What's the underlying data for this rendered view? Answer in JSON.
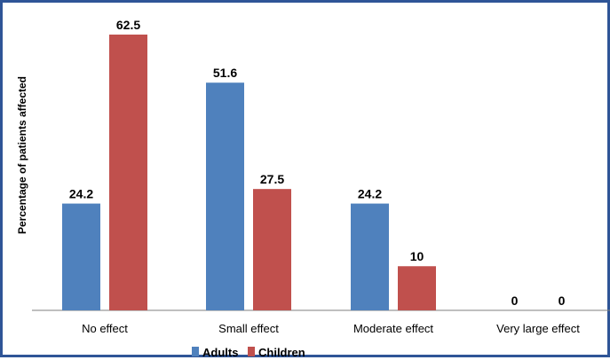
{
  "chart_data": {
    "type": "bar",
    "categories": [
      "No effect",
      "Small effect",
      "Moderate effect",
      "Very large effect"
    ],
    "series": [
      {
        "name": "Adults",
        "values": [
          24.2,
          51.6,
          24.2,
          0
        ],
        "color": "#4f81bd"
      },
      {
        "name": "Children",
        "values": [
          62.5,
          27.5,
          10,
          0
        ],
        "color": "#c0504d"
      }
    ],
    "value_labels": [
      [
        "24.2",
        "51.6",
        "24.2",
        "0"
      ],
      [
        "62.5",
        "27.5",
        "10",
        "0"
      ]
    ],
    "title": "",
    "xlabel": "",
    "ylabel": "Percentage of patients affected",
    "ylim": [
      0,
      65
    ],
    "grid": false,
    "legend_position": "bottom-center"
  }
}
